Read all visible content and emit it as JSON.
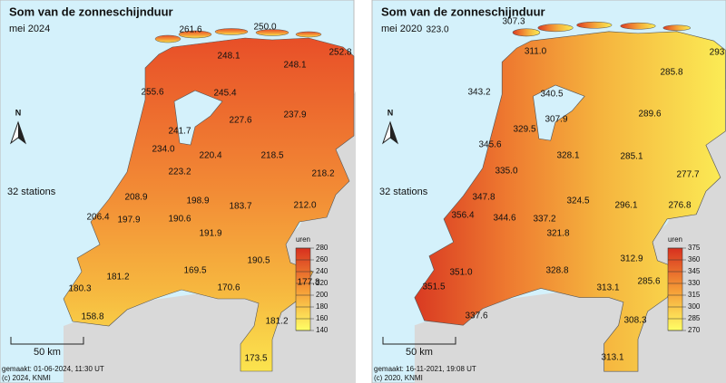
{
  "panels": [
    {
      "title": "Som van de zonneschijnduur",
      "subtitle": "mei 2024",
      "stations_note": "32 stations",
      "unit": "uren",
      "legend_ticks": [
        280,
        260,
        240,
        220,
        200,
        180,
        160,
        140
      ],
      "scale_label": "50 km",
      "made": "gemaakt: 01-06-2024, 11:30 UT",
      "copyright": "(c) 2024, KNMI",
      "stations": [
        "261.6",
        "250.0",
        "252.8",
        "248.1",
        "248.1",
        "255.6",
        "245.4",
        "227.6",
        "237.9",
        "241.7",
        "234.0",
        "220.4",
        "218.5",
        "218.2",
        "223.2",
        "208.9",
        "198.9",
        "183.7",
        "212.0",
        "206.4",
        "197.9",
        "190.6",
        "191.9",
        "190.5",
        "169.5",
        "181.2",
        "177.8",
        "180.3",
        "170.6",
        "158.8",
        "181.2",
        "173.5"
      ]
    },
    {
      "title": "Som van de zonneschijnduur",
      "subtitle": "mei 2020",
      "stations_note": "32 stations",
      "unit": "uren",
      "legend_ticks": [
        375,
        360,
        345,
        330,
        315,
        300,
        285,
        270
      ],
      "scale_label": "50 km",
      "made": "gemaakt: 16-11-2021, 19:08 UT",
      "copyright": "(c) 2020, KNMI",
      "stations": [
        "323.0",
        "307.3",
        "293",
        "311.0",
        "285.8",
        "343.2",
        "340.5",
        "307.9",
        "289.6",
        "345.6",
        "329.5",
        "328.1",
        "285.1",
        "277.7",
        "335.0",
        "347.8",
        "324.5",
        "296.1",
        "276.8",
        "356.4",
        "344.6",
        "337.2",
        "321.8",
        "312.9",
        "328.8",
        "285.6",
        "313.1",
        "351.0",
        "351.5",
        "337.6",
        "308.3",
        "313.1"
      ]
    }
  ]
}
